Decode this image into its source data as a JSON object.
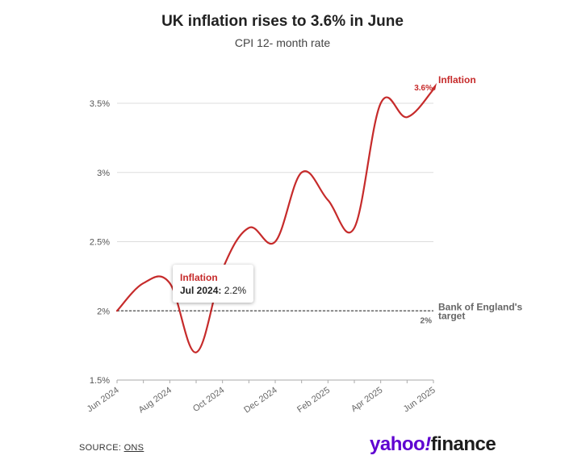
{
  "title": "UK inflation rises to 3.6% in June",
  "subtitle": "CPI 12- month rate",
  "chart_data": {
    "type": "line",
    "x": [
      "2024-06",
      "2024-07",
      "2024-08",
      "2024-09",
      "2024-10",
      "2024-11",
      "2024-12",
      "2025-01",
      "2025-02",
      "2025-03",
      "2025-04",
      "2025-05",
      "2025-06"
    ],
    "series": [
      {
        "name": "Inflation",
        "values": [
          2.0,
          2.2,
          2.2,
          1.7,
          2.3,
          2.6,
          2.5,
          3.0,
          2.8,
          2.6,
          3.5,
          3.4,
          3.6
        ],
        "color": "#c62b2b"
      }
    ],
    "x_tick_labels": [
      "Jun 2024",
      "Aug 2024",
      "Oct 2024",
      "Dec 2024",
      "Feb 2025",
      "Apr 2025",
      "Jun 2025"
    ],
    "x_tick_positions": [
      "2024-06",
      "2024-08",
      "2024-10",
      "2024-12",
      "2025-02",
      "2025-04",
      "2025-06"
    ],
    "y_ticks": [
      1.5,
      2,
      2.5,
      3,
      3.5
    ],
    "y_tick_labels": [
      "1.5%",
      "2%",
      "2.5%",
      "3%",
      "3.5%"
    ],
    "ylim": [
      1.5,
      3.6
    ],
    "grid": true,
    "end_label": {
      "series": "Inflation",
      "value_text": "3.6%"
    },
    "reference_line": {
      "y": 2,
      "label_line1": "Bank of England's",
      "label_line2": "target",
      "value_text": "2%",
      "color": "#666666"
    },
    "tooltip": {
      "series": "Inflation",
      "date_label": "Jul 2024:",
      "value_text": "2.2%"
    }
  },
  "source": {
    "label": "SOURCE: ",
    "link": "ONS"
  },
  "logo": {
    "part1": "yahoo",
    "slash": "!",
    "part2": "finance"
  }
}
